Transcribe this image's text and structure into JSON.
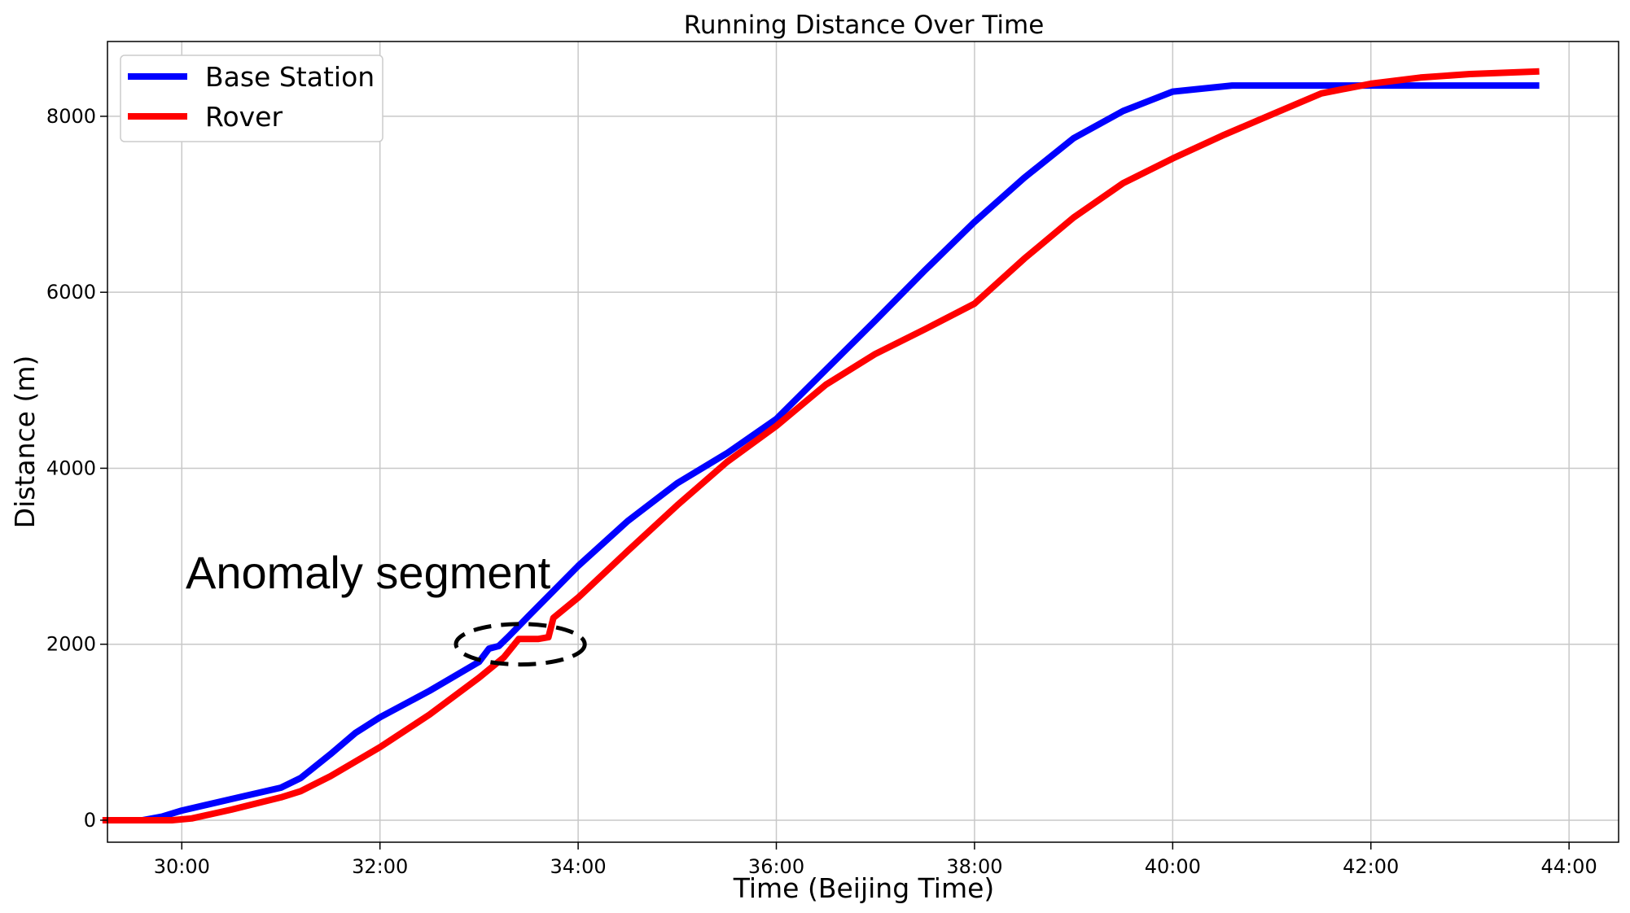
{
  "chart_data": {
    "type": "line",
    "title": "Running Distance Over Time",
    "xlabel": "Time (Beijing Time)",
    "ylabel": "Distance (m)",
    "x_unit": "minutes:seconds",
    "xlim": [
      "29:15",
      "44:30"
    ],
    "ylim": [
      -250,
      8850
    ],
    "x_ticks": [
      "30:00",
      "32:00",
      "34:00",
      "36:00",
      "38:00",
      "40:00",
      "42:00",
      "44:00"
    ],
    "y_ticks": [
      0,
      2000,
      4000,
      6000,
      8000
    ],
    "grid": true,
    "legend_position": "top-left",
    "series": [
      {
        "name": "Base Station",
        "color": "#0000ff",
        "points": [
          [
            "29:12",
            0
          ],
          [
            "29:36",
            0
          ],
          [
            "29:48",
            40
          ],
          [
            "30:00",
            110
          ],
          [
            "30:30",
            240
          ],
          [
            "31:00",
            370
          ],
          [
            "31:12",
            480
          ],
          [
            "31:30",
            750
          ],
          [
            "31:45",
            990
          ],
          [
            "32:00",
            1170
          ],
          [
            "32:30",
            1470
          ],
          [
            "33:00",
            1800
          ],
          [
            "33:06",
            1950
          ],
          [
            "33:12",
            1980
          ],
          [
            "33:18",
            2090
          ],
          [
            "33:30",
            2320
          ],
          [
            "34:00",
            2890
          ],
          [
            "34:30",
            3400
          ],
          [
            "35:00",
            3830
          ],
          [
            "35:30",
            4170
          ],
          [
            "36:00",
            4560
          ],
          [
            "36:30",
            5120
          ],
          [
            "37:00",
            5680
          ],
          [
            "37:30",
            6250
          ],
          [
            "38:00",
            6800
          ],
          [
            "38:30",
            7300
          ],
          [
            "39:00",
            7750
          ],
          [
            "39:30",
            8060
          ],
          [
            "40:00",
            8280
          ],
          [
            "40:36",
            8350
          ],
          [
            "41:30",
            8350
          ],
          [
            "42:30",
            8350
          ],
          [
            "43:42",
            8350
          ]
        ]
      },
      {
        "name": "Rover",
        "color": "#ff0000",
        "points": [
          [
            "29:12",
            0
          ],
          [
            "29:54",
            0
          ],
          [
            "30:06",
            20
          ],
          [
            "30:30",
            120
          ],
          [
            "31:00",
            260
          ],
          [
            "31:12",
            330
          ],
          [
            "31:30",
            500
          ],
          [
            "32:00",
            830
          ],
          [
            "32:30",
            1200
          ],
          [
            "33:00",
            1620
          ],
          [
            "33:15",
            1850
          ],
          [
            "33:24",
            2060
          ],
          [
            "33:36",
            2060
          ],
          [
            "33:42",
            2080
          ],
          [
            "33:45",
            2300
          ],
          [
            "34:00",
            2530
          ],
          [
            "34:30",
            3060
          ],
          [
            "35:00",
            3580
          ],
          [
            "35:30",
            4070
          ],
          [
            "36:00",
            4480
          ],
          [
            "36:30",
            4950
          ],
          [
            "37:00",
            5300
          ],
          [
            "37:30",
            5580
          ],
          [
            "38:00",
            5870
          ],
          [
            "38:30",
            6380
          ],
          [
            "39:00",
            6850
          ],
          [
            "39:30",
            7240
          ],
          [
            "40:00",
            7520
          ],
          [
            "40:30",
            7780
          ],
          [
            "41:00",
            8020
          ],
          [
            "41:30",
            8260
          ],
          [
            "42:00",
            8370
          ],
          [
            "42:30",
            8440
          ],
          [
            "43:00",
            8480
          ],
          [
            "43:42",
            8510
          ]
        ]
      }
    ],
    "annotations": [
      {
        "text": "Anomaly segment",
        "style": "dashed-ellipse",
        "center": [
          "33:25",
          2000
        ],
        "x_radius_minutes": 0.65,
        "y_radius": 230
      }
    ]
  }
}
